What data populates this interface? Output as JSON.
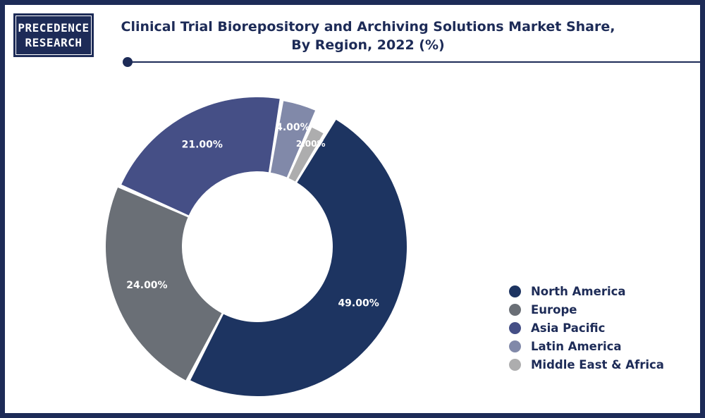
{
  "brand": {
    "line1": "PRECEDENCE",
    "line2": "RESEARCH"
  },
  "colors": {
    "frame": "#1d2b57",
    "north_america": "#1d3461",
    "europe": "#6a6f76",
    "asia_pacific": "#454f86",
    "latin_america": "#8189a9",
    "middle_east_africa": "#adadae"
  },
  "chart_data": {
    "type": "pie",
    "donut": true,
    "title_line1": "Clinical Trial Biorepository and Archiving Solutions Market Share,",
    "title_line2": "By Region, 2022 (%)",
    "legend_position": "bottom-right",
    "slices": [
      {
        "name": "North America",
        "value": 49,
        "label": "49.00%",
        "color": "#1d3461"
      },
      {
        "name": "Europe",
        "value": 24,
        "label": "24.00%",
        "color": "#6a6f76"
      },
      {
        "name": "Asia Pacific",
        "value": 21,
        "label": "21.00%",
        "color": "#454f86"
      },
      {
        "name": "Latin America",
        "value": 4,
        "label": "4.00%",
        "color": "#8189a9"
      },
      {
        "name": "Middle East & Africa",
        "value": 2,
        "label": "2.00%",
        "color": "#adadae"
      }
    ]
  }
}
